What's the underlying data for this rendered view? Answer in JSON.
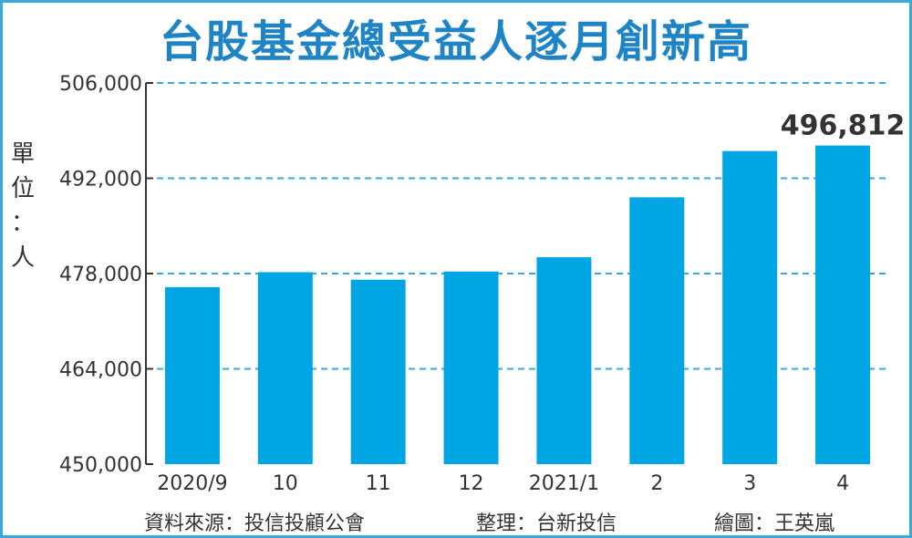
{
  "header": {
    "title": "台股基金總受益人逐月創新高",
    "unit_label": "單位：人"
  },
  "footer": {
    "source": "資料來源：投信投顧公會",
    "compiled": "整理：台新投信",
    "graphic": "繪圖：王英嵐"
  },
  "colors": {
    "bar": "#00a6e3",
    "title": "#1f84c6",
    "frame": "#39a9dd",
    "grid": "#39a9dd",
    "text": "#333333"
  },
  "chart_data": {
    "type": "bar",
    "title": "台股基金總受益人逐月創新高",
    "ylabel": "單位：人",
    "categories": [
      "2020/9",
      "10",
      "11",
      "12",
      "2021/1",
      "2",
      "3",
      "4"
    ],
    "values": [
      476000,
      478200,
      477100,
      478300,
      480400,
      489200,
      496000,
      496812
    ],
    "ylim": [
      450000,
      506000
    ],
    "y_ticks": [
      450000,
      464000,
      478000,
      492000,
      506000
    ],
    "y_tick_labels": [
      "450,000",
      "464,000",
      "478,000",
      "492,000",
      "506,000"
    ],
    "data_labels": [
      {
        "index": 7,
        "text": "496,812"
      }
    ],
    "grid": "horizontal-dashed",
    "legend": "none"
  }
}
